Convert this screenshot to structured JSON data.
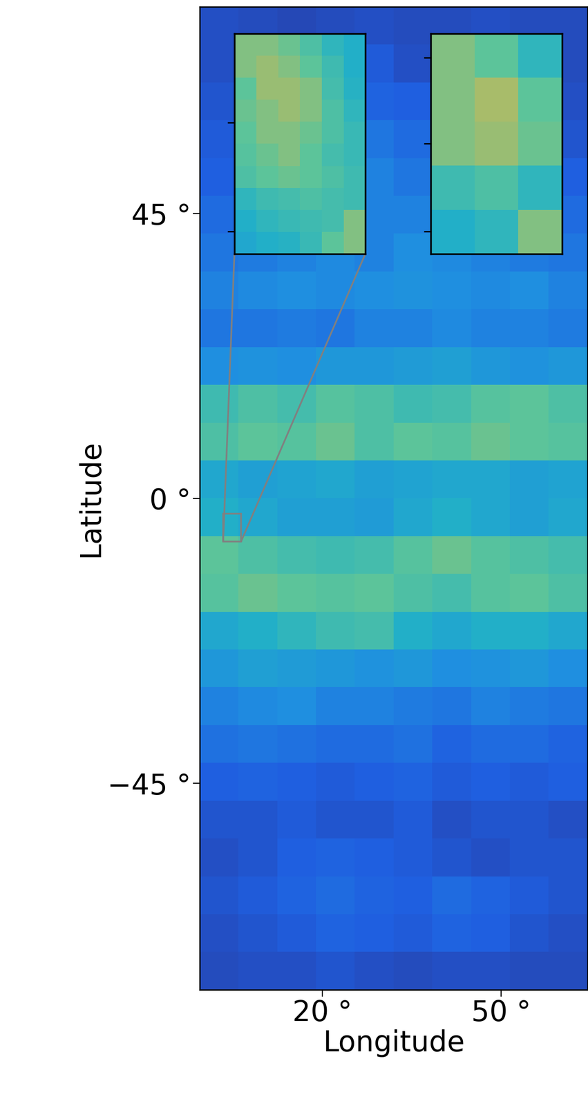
{
  "chart_data": {
    "type": "heatmap",
    "x_label": "Longitude",
    "y_label": "Latitude",
    "xlim": [
      -0.5,
      64.5
    ],
    "ylim": [
      -77.6,
      77.6
    ],
    "xticks": [
      {
        "value": 20,
        "label": "20 °"
      },
      {
        "value": 50,
        "label": "50 °"
      }
    ],
    "yticks": [
      {
        "value": -45,
        "label": "−45 °"
      },
      {
        "value": 0,
        "label": "0 °"
      },
      {
        "value": 45,
        "label": "45 °"
      }
    ],
    "clim": [
      0,
      1
    ],
    "cells": [
      [
        0.12,
        0.1,
        0.08,
        0.1,
        0.12,
        0.1,
        0.1,
        0.12,
        0.1,
        0.1
      ],
      [
        0.12,
        0.15,
        0.1,
        0.12,
        0.18,
        0.12,
        0.1,
        0.1,
        0.12,
        0.1
      ],
      [
        0.15,
        0.15,
        0.12,
        0.18,
        0.22,
        0.2,
        0.15,
        0.12,
        0.15,
        0.12
      ],
      [
        0.18,
        0.2,
        0.2,
        0.25,
        0.3,
        0.25,
        0.22,
        0.2,
        0.18,
        0.15
      ],
      [
        0.2,
        0.22,
        0.25,
        0.3,
        0.35,
        0.3,
        0.28,
        0.25,
        0.22,
        0.2
      ],
      [
        0.25,
        0.28,
        0.3,
        0.32,
        0.35,
        0.35,
        0.3,
        0.28,
        0.25,
        0.25
      ],
      [
        0.3,
        0.32,
        0.35,
        0.38,
        0.35,
        0.4,
        0.38,
        0.35,
        0.32,
        0.3
      ],
      [
        0.35,
        0.38,
        0.4,
        0.38,
        0.4,
        0.42,
        0.4,
        0.38,
        0.4,
        0.35
      ],
      [
        0.3,
        0.3,
        0.32,
        0.3,
        0.35,
        0.35,
        0.38,
        0.35,
        0.35,
        0.32
      ],
      [
        0.4,
        0.42,
        0.4,
        0.45,
        0.45,
        0.48,
        0.5,
        0.45,
        0.42,
        0.45
      ],
      [
        0.7,
        0.75,
        0.72,
        0.78,
        0.75,
        0.7,
        0.72,
        0.78,
        0.8,
        0.75
      ],
      [
        0.75,
        0.8,
        0.78,
        0.82,
        0.75,
        0.8,
        0.78,
        0.82,
        0.8,
        0.78
      ],
      [
        0.55,
        0.5,
        0.52,
        0.55,
        0.5,
        0.52,
        0.55,
        0.55,
        0.5,
        0.52
      ],
      [
        0.6,
        0.55,
        0.5,
        0.5,
        0.48,
        0.55,
        0.6,
        0.55,
        0.5,
        0.55
      ],
      [
        0.8,
        0.75,
        0.72,
        0.7,
        0.72,
        0.78,
        0.82,
        0.78,
        0.75,
        0.72
      ],
      [
        0.78,
        0.82,
        0.8,
        0.78,
        0.8,
        0.75,
        0.72,
        0.78,
        0.8,
        0.75
      ],
      [
        0.55,
        0.6,
        0.65,
        0.7,
        0.72,
        0.6,
        0.55,
        0.6,
        0.6,
        0.55
      ],
      [
        0.45,
        0.5,
        0.48,
        0.45,
        0.42,
        0.45,
        0.4,
        0.42,
        0.45,
        0.4
      ],
      [
        0.35,
        0.38,
        0.4,
        0.35,
        0.35,
        0.32,
        0.3,
        0.35,
        0.32,
        0.3
      ],
      [
        0.28,
        0.3,
        0.28,
        0.25,
        0.25,
        0.28,
        0.22,
        0.25,
        0.25,
        0.22
      ],
      [
        0.2,
        0.22,
        0.2,
        0.18,
        0.2,
        0.22,
        0.18,
        0.2,
        0.18,
        0.2
      ],
      [
        0.15,
        0.15,
        0.18,
        0.15,
        0.15,
        0.18,
        0.12,
        0.15,
        0.15,
        0.12
      ],
      [
        0.12,
        0.15,
        0.2,
        0.22,
        0.2,
        0.18,
        0.15,
        0.12,
        0.15,
        0.15
      ],
      [
        0.15,
        0.18,
        0.22,
        0.25,
        0.22,
        0.2,
        0.25,
        0.22,
        0.18,
        0.15
      ],
      [
        0.12,
        0.15,
        0.18,
        0.22,
        0.2,
        0.18,
        0.22,
        0.2,
        0.15,
        0.12
      ],
      [
        0.1,
        0.12,
        0.12,
        0.15,
        0.12,
        0.1,
        0.12,
        0.12,
        0.1,
        0.1
      ]
    ],
    "insets": [
      {
        "type": "heatmap",
        "xlim": [
          3.4,
          6.4
        ],
        "ylim": [
          -6.8,
          -2.4
        ],
        "yticks": [
          -6.35,
          -4.18
        ],
        "tick_labels": false,
        "cells": [
          [
            0.85,
            0.85,
            0.82,
            0.75,
            0.65,
            0.6
          ],
          [
            0.85,
            0.88,
            0.85,
            0.8,
            0.7,
            0.6
          ],
          [
            0.8,
            0.88,
            0.88,
            0.85,
            0.72,
            0.62
          ],
          [
            0.82,
            0.85,
            0.88,
            0.85,
            0.75,
            0.65
          ],
          [
            0.8,
            0.85,
            0.85,
            0.82,
            0.75,
            0.68
          ],
          [
            0.78,
            0.82,
            0.85,
            0.8,
            0.72,
            0.68
          ],
          [
            0.75,
            0.8,
            0.82,
            0.8,
            0.75,
            0.7
          ],
          [
            0.65,
            0.7,
            0.72,
            0.75,
            0.72,
            0.7
          ],
          [
            0.6,
            0.65,
            0.68,
            0.7,
            0.72,
            0.85
          ],
          [
            0.55,
            0.6,
            0.62,
            0.68,
            0.8,
            0.85
          ]
        ]
      },
      {
        "type": "heatmap",
        "xlim": [
          3.4,
          6.4
        ],
        "ylim": [
          -6.8,
          -2.4
        ],
        "yticks": [
          -6.35,
          -4.6,
          -2.88
        ],
        "tick_labels": false,
        "cells": [
          [
            0.85,
            0.8,
            0.65
          ],
          [
            0.85,
            0.9,
            0.8
          ],
          [
            0.85,
            0.88,
            0.82
          ],
          [
            0.7,
            0.75,
            0.65
          ],
          [
            0.6,
            0.65,
            0.85
          ]
        ]
      }
    ]
  }
}
